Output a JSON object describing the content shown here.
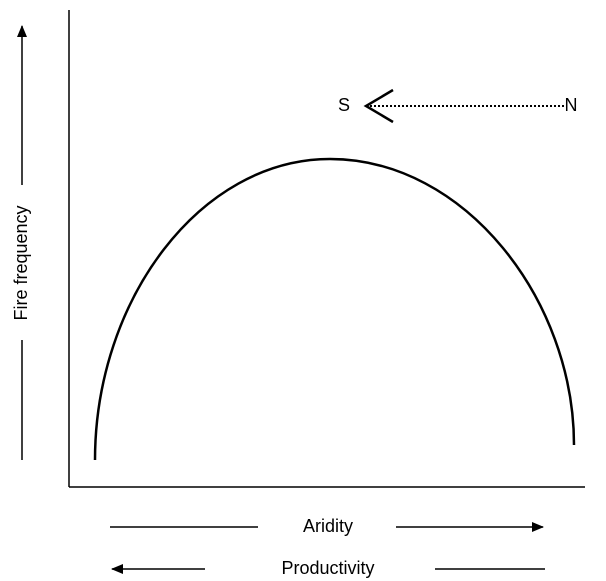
{
  "axis_labels": {
    "y": "Fire frequency",
    "x_top": "Aridity",
    "x_bottom": "Productivity"
  },
  "direction": {
    "from": "N",
    "to": "S"
  }
}
